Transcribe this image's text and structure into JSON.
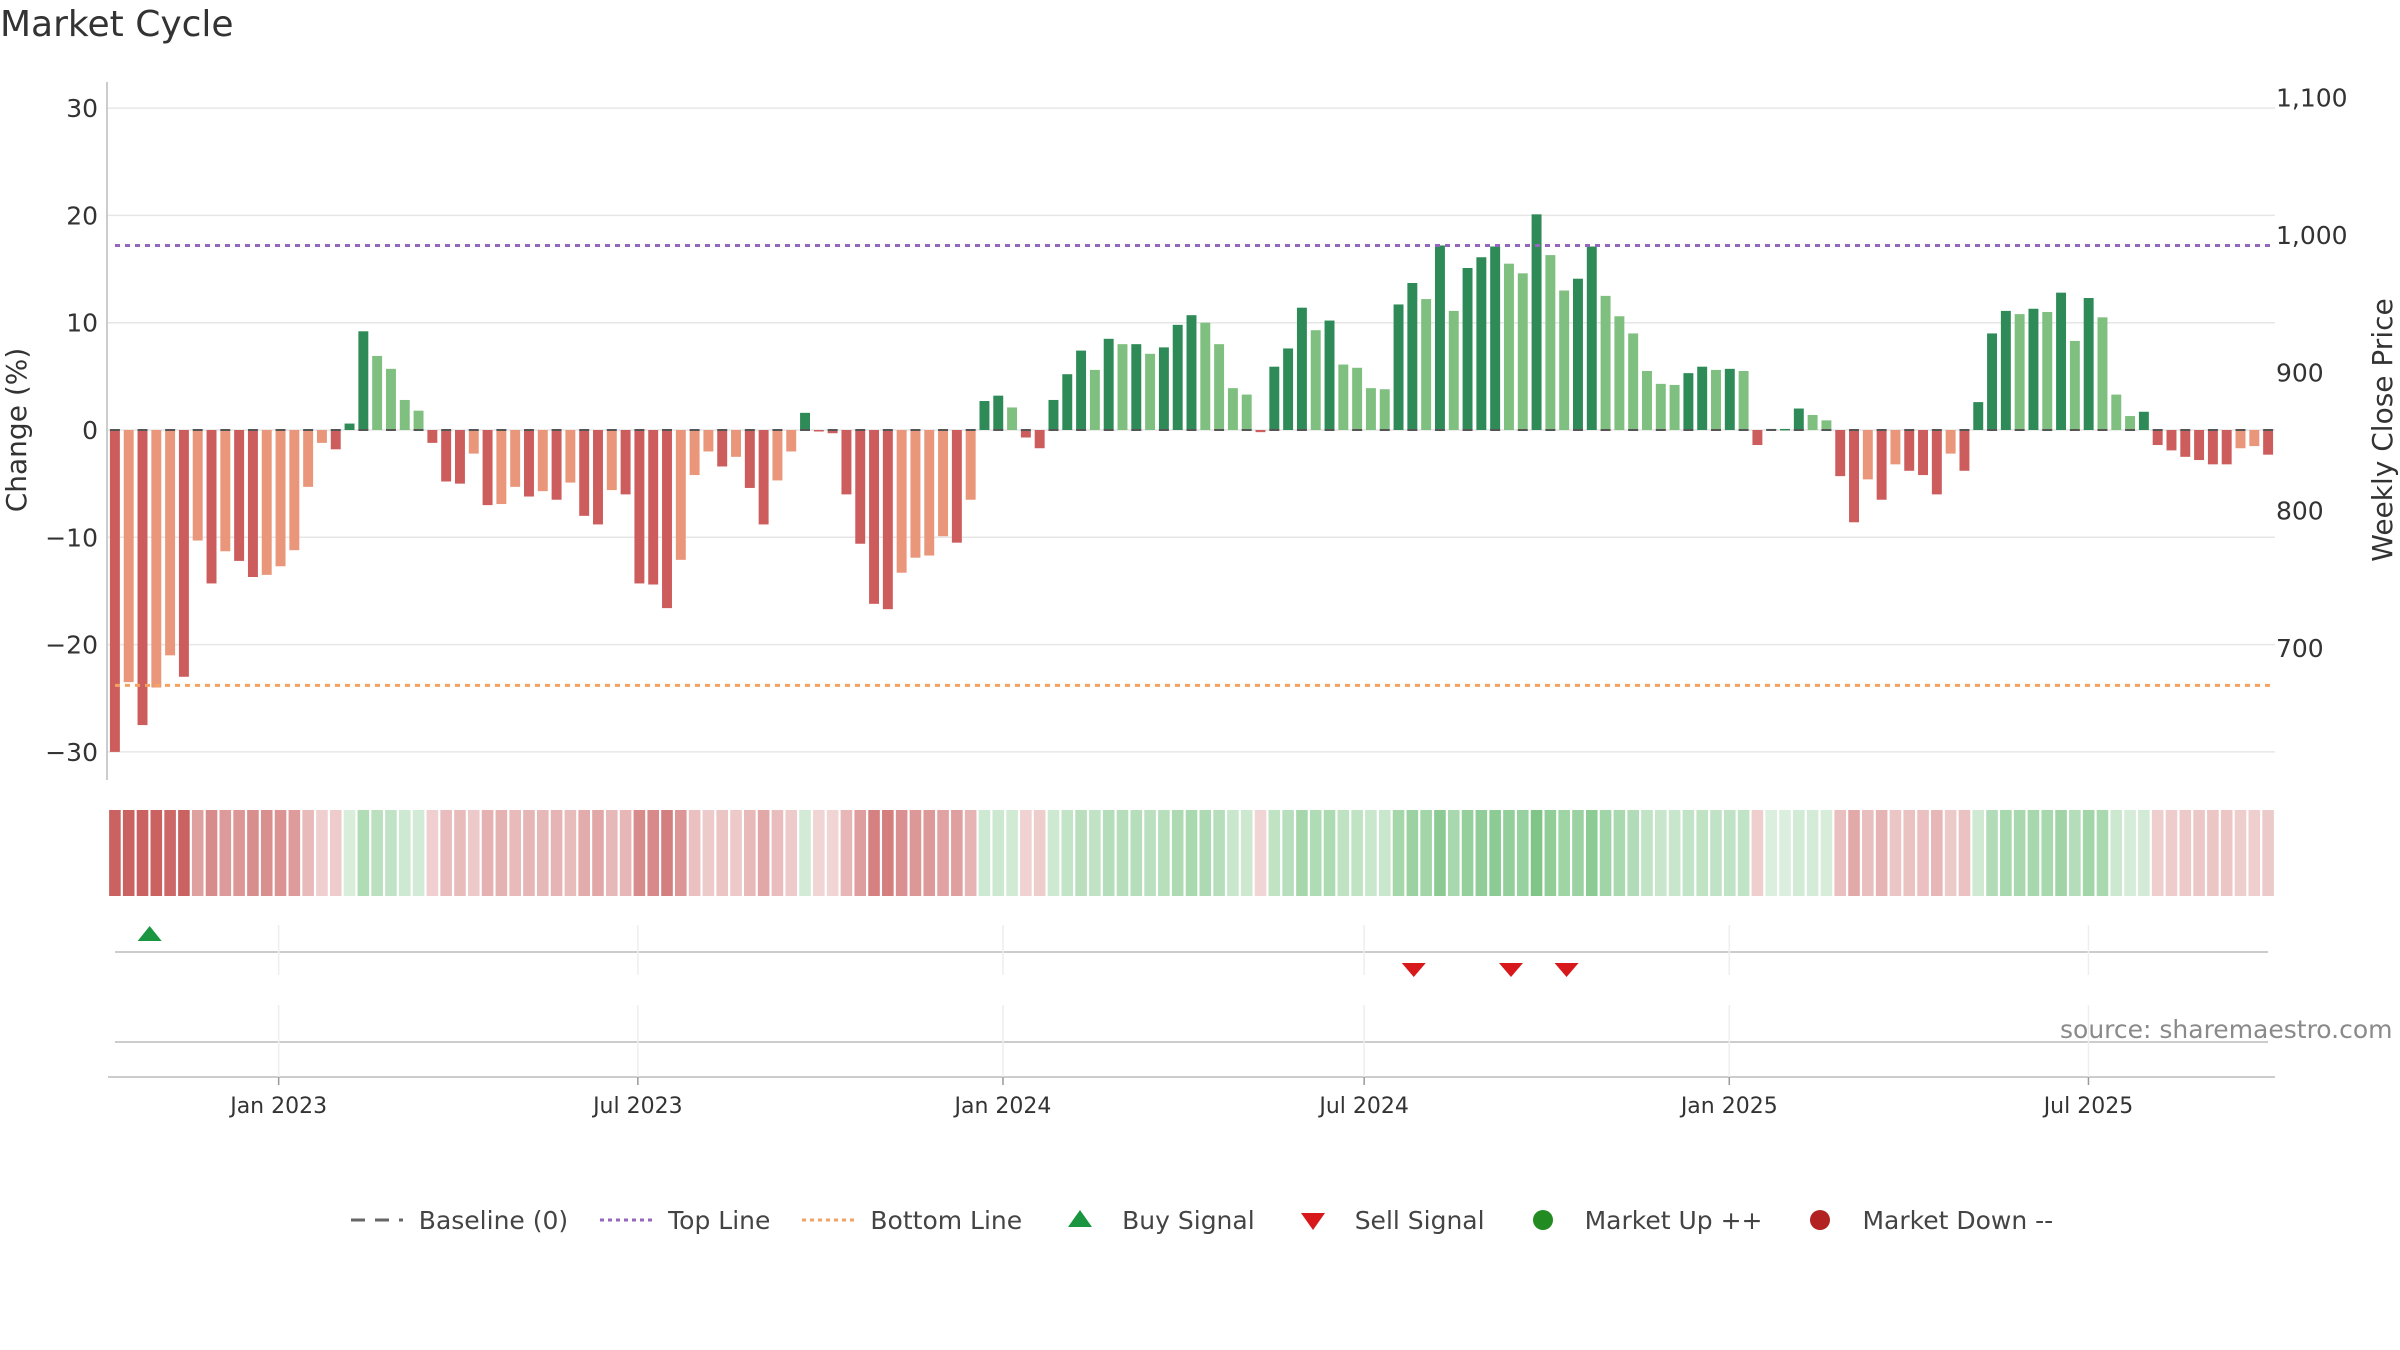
{
  "title": "Market Cycle",
  "source": "source: sharemaestro.com",
  "colors": {
    "strong_up": "#2e8b57",
    "weak_up": "#7fbf7f",
    "strong_down": "#cd5c5c",
    "weak_down": "#e9967a",
    "top_line": "#9467bd",
    "bottom_line": "#f4a261",
    "baseline": "#555555",
    "buy": "#1a9641",
    "sell": "#d7191c"
  },
  "legend": [
    {
      "label": "Baseline (0)",
      "icon": "dash-line"
    },
    {
      "label": "Top Line",
      "icon": "dotted-line-purple"
    },
    {
      "label": "Bottom Line",
      "icon": "dotted-line-orange"
    },
    {
      "label": "Buy Signal",
      "icon": "triangle-up-green"
    },
    {
      "label": "Sell Signal",
      "icon": "triangle-down-red"
    },
    {
      "label": "Market Up ++",
      "icon": "circle-green"
    },
    {
      "label": "Market Down --",
      "icon": "circle-red"
    }
  ],
  "chart_data": {
    "type": "bar",
    "title": "Market Cycle",
    "ylabel": "Change (%)",
    "y2label": "Weekly Close Price",
    "ylim": [
      -32,
      32
    ],
    "y2lim": [
      622,
      1113
    ],
    "yticks": [
      30,
      20,
      10,
      0,
      -10,
      -20,
      -30
    ],
    "ytick_labels": [
      "30",
      "20",
      "10",
      "0",
      "−10",
      "−20",
      "−30"
    ],
    "y2ticks": [
      1100,
      1000,
      900,
      800,
      700
    ],
    "y2tick_labels": [
      "1,100",
      "1,000",
      "900",
      "800",
      "700"
    ],
    "x_start": "2022-10-07",
    "x_end": "2025-10-03",
    "x_step_days": 7,
    "xticks": [
      {
        "date": "2023-01-01",
        "label": "Jan 2023"
      },
      {
        "date": "2023-07-01",
        "label": "Jul 2023"
      },
      {
        "date": "2024-01-01",
        "label": "Jan 2024"
      },
      {
        "date": "2024-07-01",
        "label": "Jul 2024"
      },
      {
        "date": "2025-01-01",
        "label": "Jan 2025"
      },
      {
        "date": "2025-07-01",
        "label": "Jul 2025"
      }
    ],
    "top_line": 17.2,
    "bottom_line": -23.8,
    "grid": true,
    "legend_position": "bottom",
    "values": [
      -30.0,
      -23.5,
      -27.5,
      -24.0,
      -21.0,
      -23.0,
      -10.3,
      -14.3,
      -11.3,
      -12.2,
      -13.7,
      -13.5,
      -12.7,
      -11.2,
      -5.3,
      -1.2,
      -1.8,
      0.6,
      9.2,
      6.9,
      5.7,
      2.8,
      1.8,
      -1.2,
      -4.8,
      -5.0,
      -2.2,
      -7.0,
      -6.9,
      -5.3,
      -6.2,
      -5.7,
      -6.5,
      -4.9,
      -8.0,
      -8.8,
      -5.6,
      -6.0,
      -14.3,
      -14.4,
      -16.6,
      -12.1,
      -4.2,
      -2.0,
      -3.4,
      -2.5,
      -5.4,
      -8.8,
      -4.7,
      -2.0,
      1.6,
      -0.1,
      -0.3,
      -6.0,
      -10.6,
      -16.2,
      -16.7,
      -13.3,
      -11.9,
      -11.7,
      -9.9,
      -10.5,
      -6.5,
      2.7,
      3.2,
      2.1,
      -0.7,
      -1.7,
      2.8,
      5.2,
      7.4,
      5.6,
      8.5,
      8.0,
      8.0,
      7.1,
      7.7,
      9.8,
      10.7,
      10.0,
      8.0,
      3.9,
      3.3,
      -0.2,
      5.9,
      7.6,
      11.4,
      9.3,
      10.2,
      6.1,
      5.8,
      3.9,
      3.8,
      11.7,
      13.7,
      12.2,
      17.2,
      11.1,
      15.1,
      16.1,
      17.1,
      15.5,
      14.6,
      20.1,
      16.3,
      13.0,
      14.1,
      17.1,
      12.5,
      10.6,
      9.0,
      5.5,
      4.3,
      4.2,
      5.3,
      5.9,
      5.6,
      5.7,
      5.5,
      -1.4,
      0.1,
      0.1,
      2.0,
      1.4,
      0.9,
      -4.3,
      -8.6,
      -4.6,
      -6.5,
      -3.2,
      -3.8,
      -4.2,
      -6.0,
      -2.2,
      -3.8,
      2.6,
      9.0,
      11.1,
      10.8,
      11.3,
      11.0,
      12.8,
      8.3,
      12.3,
      10.5,
      3.3,
      1.3,
      1.7,
      -1.4,
      -1.9,
      -2.5,
      -2.8,
      -3.2,
      -3.2,
      -1.7,
      -1.5,
      -2.3
    ],
    "price_series": "none visible",
    "signals": {
      "buy": [
        "2022-10-28"
      ],
      "sell": [
        "2024-07-26",
        "2024-09-13",
        "2024-10-11"
      ]
    },
    "regime_strip": "per-week colored cells below main panel, red shades for down weeks, green shades for up weeks"
  }
}
